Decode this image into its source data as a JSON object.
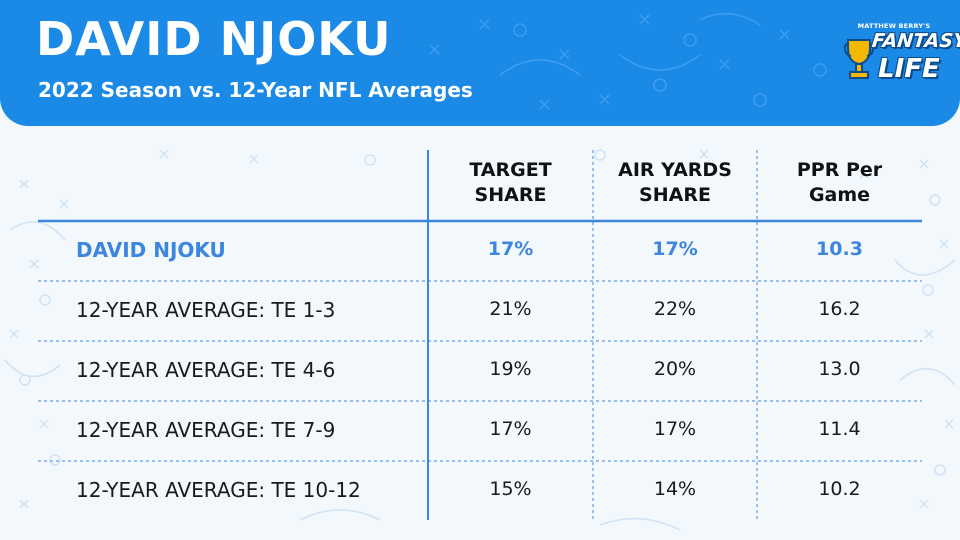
{
  "header": {
    "title": "DAVID NJOKU",
    "subtitle": "2022 Season vs. 12-Year NFL Averages"
  },
  "logo": {
    "top_text": "MATTHEW BERRY'S",
    "word1": "FANTASY",
    "word2": "LIFE"
  },
  "colors": {
    "header_blue": "#1b8ae6",
    "highlight_blue": "#3d86e0",
    "page_bg": "#f3f8fd"
  },
  "table": {
    "columns": [
      {
        "line1": "TARGET",
        "line2": "SHARE"
      },
      {
        "line1": "AIR YARDS",
        "line2": "SHARE"
      },
      {
        "line1": "PPR Per",
        "line2": "Game"
      }
    ],
    "rows": [
      {
        "label": "DAVID NJOKU",
        "values": [
          "17%",
          "17%",
          "10.3"
        ],
        "highlight": true
      },
      {
        "label": "12-YEAR AVERAGE: TE 1-3",
        "values": [
          "21%",
          "22%",
          "16.2"
        ],
        "highlight": false
      },
      {
        "label": "12-YEAR AVERAGE: TE 4-6",
        "values": [
          "19%",
          "20%",
          "13.0"
        ],
        "highlight": false
      },
      {
        "label": "12-YEAR AVERAGE: TE 7-9",
        "values": [
          "17%",
          "17%",
          "11.4"
        ],
        "highlight": false
      },
      {
        "label": "12-YEAR AVERAGE: TE 10-12",
        "values": [
          "15%",
          "14%",
          "10.2"
        ],
        "highlight": false
      }
    ]
  }
}
